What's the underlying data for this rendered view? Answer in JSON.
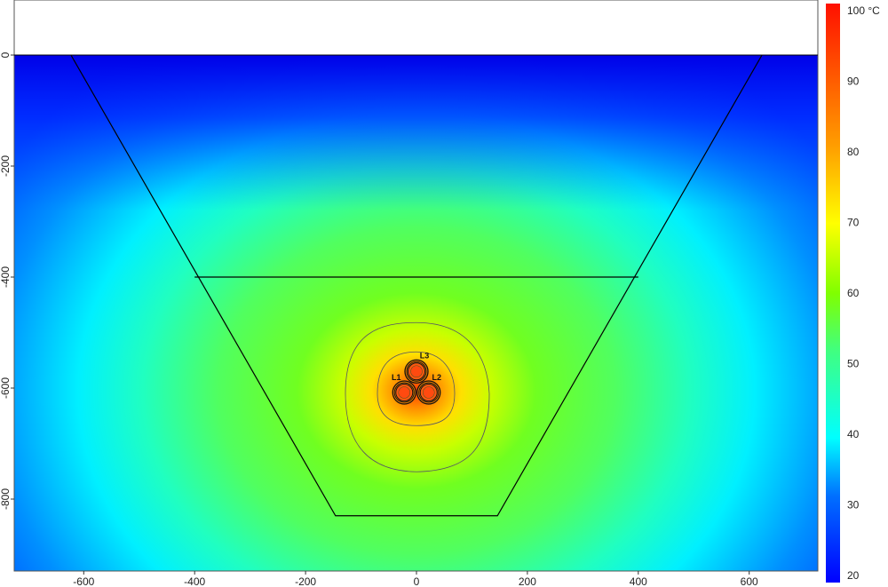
{
  "chart_data": {
    "type": "heatmap",
    "title": "",
    "xlabel": "",
    "ylabel": "",
    "xlim": [
      -725,
      723
    ],
    "ylim": [
      -930,
      99
    ],
    "x_ticks": [
      -600,
      -400,
      -200,
      0,
      200,
      400,
      600
    ],
    "y_ticks": [
      0,
      -200,
      -400,
      -600,
      -800
    ],
    "colorbar": {
      "unit": "°C",
      "range": [
        20,
        100
      ],
      "ticks": [
        "100 °C",
        "90",
        "80",
        "70",
        "60",
        "50",
        "40",
        "30",
        "20"
      ],
      "colormap": [
        "#0000ff",
        "#0080ff",
        "#00ffff",
        "#40ff80",
        "#80ff00",
        "#ffff00",
        "#ff9900",
        "#ff2000"
      ]
    },
    "ground_surface_y": 0,
    "trench": {
      "outline": [
        [
          -623,
          0
        ],
        [
          -146,
          -830
        ],
        [
          146,
          -830
        ],
        [
          623,
          0
        ]
      ],
      "backfill_line": [
        [
          -400,
          -400
        ],
        [
          400,
          -400
        ]
      ]
    },
    "cables": [
      {
        "label": "L1",
        "x": -22,
        "y": -608
      },
      {
        "label": "L2",
        "x": 22,
        "y": -608
      },
      {
        "label": "L3",
        "x": 0,
        "y": -570
      }
    ],
    "max_temperature": 100,
    "grid": false
  }
}
